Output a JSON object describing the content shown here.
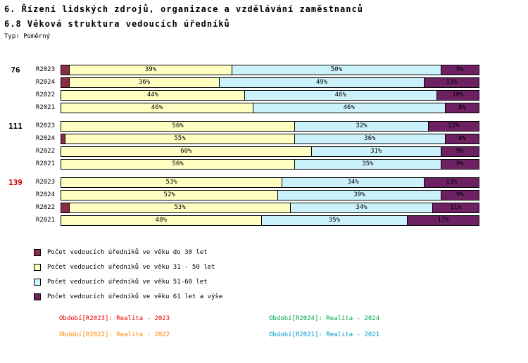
{
  "header": {
    "title": "6. Řízení lidských zdrojů, organizace a vzdělávání zaměstnanců",
    "subtitle": "6.8 Věková struktura vedoucích úředníků",
    "type_label": "Typ: Poměrný"
  },
  "chart_data": {
    "type": "bar",
    "orientation": "horizontal",
    "stacked": true,
    "value_unit": "%",
    "xlim": [
      0,
      100
    ],
    "series": [
      {
        "id": "age-do-30",
        "name": "Počet vedoucích úředníků ve věku do 30 let",
        "color": "#8C2D46"
      },
      {
        "id": "age-31-50",
        "name": "Počet vedoucích úředníků ve věku 31 - 50 let",
        "color": "#FFFFC2"
      },
      {
        "id": "age-51-60",
        "name": "Počet vedoucích úředníků ve věku 51-60 let",
        "color": "#CBF1FA"
      },
      {
        "id": "age-61-plus",
        "name": "Počet vedoucích úředníků ve věku 61 let a výše",
        "color": "#6E2162"
      }
    ],
    "groups": [
      {
        "label": "76",
        "label_color": "#000000",
        "rows": [
          {
            "label": "R2023",
            "values": [
              2,
              39,
              50,
              9
            ]
          },
          {
            "label": "R2024",
            "values": [
              2,
              36,
              49,
              13
            ]
          },
          {
            "label": "R2022",
            "values": [
              0,
              44,
              46,
              10
            ]
          },
          {
            "label": "R2021",
            "values": [
              0,
              46,
              46,
              8
            ]
          }
        ]
      },
      {
        "label": "111",
        "label_color": "#000000",
        "rows": [
          {
            "label": "R2023",
            "values": [
              0,
              56,
              32,
              12
            ]
          },
          {
            "label": "R2024",
            "values": [
              1,
              55,
              36,
              8
            ]
          },
          {
            "label": "R2022",
            "values": [
              0,
              60,
              31,
              9
            ]
          },
          {
            "label": "R2021",
            "values": [
              0,
              56,
              35,
              9
            ]
          }
        ]
      },
      {
        "label": "139",
        "label_color": "#CC0000",
        "rows": [
          {
            "label": "R2023",
            "values": [
              0,
              53,
              34,
              13
            ]
          },
          {
            "label": "R2024",
            "values": [
              0,
              52,
              39,
              9
            ]
          },
          {
            "label": "R2022",
            "values": [
              2,
              53,
              34,
              11
            ]
          },
          {
            "label": "R2021",
            "values": [
              0,
              48,
              35,
              17
            ]
          }
        ]
      }
    ]
  },
  "legend": {
    "items": [
      {
        "label": "Počet vedoucích úředníků ve věku do 30 let",
        "color": "#8C2D46"
      },
      {
        "label": "Počet vedoucích úředníků ve věku 31 - 50 let",
        "color": "#FFFFC2"
      },
      {
        "label": "Počet vedoucích úředníků ve věku 51-60 let",
        "color": "#CBF1FA"
      },
      {
        "label": "Počet vedoucích úředníků ve věku 61 let a výše",
        "color": "#6E2162"
      }
    ]
  },
  "footer": {
    "items": [
      {
        "label": "Období[R2023]:",
        "value": "Realita - 2023",
        "color": "#E80000"
      },
      {
        "label": "Období[R2024]:",
        "value": "Realita - 2024",
        "color": "#00A651"
      },
      {
        "label": "Období[R2022]:",
        "value": "Realita - 2022",
        "color": "#FF8800"
      },
      {
        "label": "Období[R2021]:",
        "value": "Realita - 2021",
        "color": "#0099CC"
      }
    ]
  }
}
